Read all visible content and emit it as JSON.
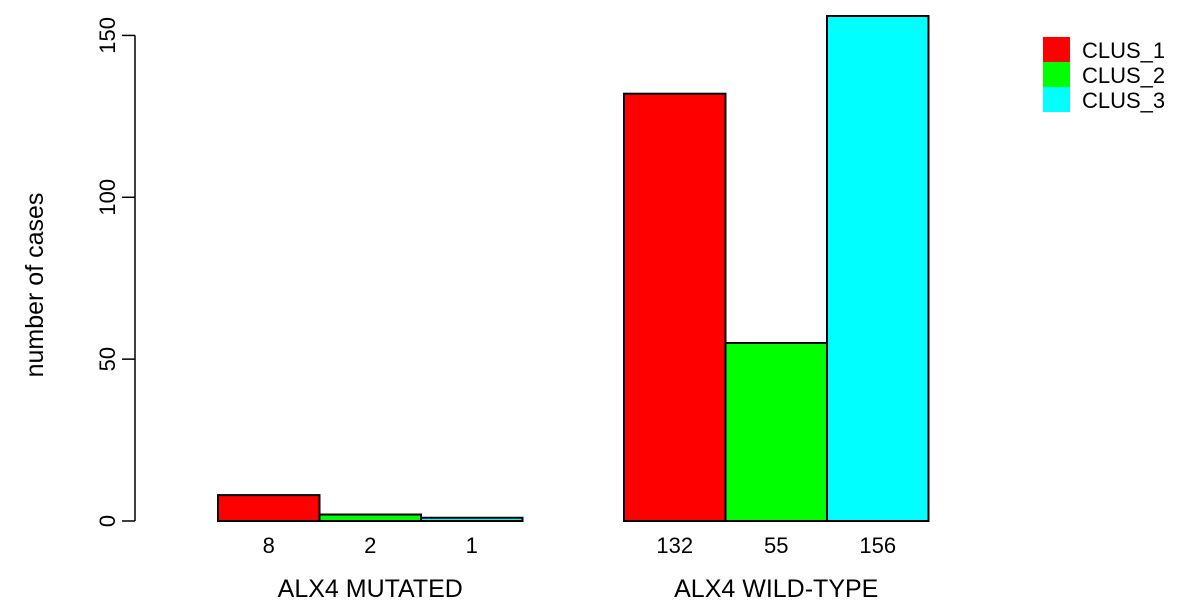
{
  "chart_data": {
    "type": "bar",
    "grouped": true,
    "ylabel": "number of cases",
    "ylim": [
      0,
      156
    ],
    "yticks": [
      0,
      50,
      100,
      150
    ],
    "categories": [
      "ALX4 MUTATED",
      "ALX4 WILD-TYPE"
    ],
    "series": [
      {
        "name": "CLUS_1",
        "color": "#ff0000",
        "values": [
          8,
          132
        ]
      },
      {
        "name": "CLUS_2",
        "color": "#00ff00",
        "values": [
          2,
          55
        ]
      },
      {
        "name": "CLUS_3",
        "color": "#00ffff",
        "values": [
          1,
          156
        ]
      }
    ],
    "legend_position": "top-right",
    "grid": false
  }
}
